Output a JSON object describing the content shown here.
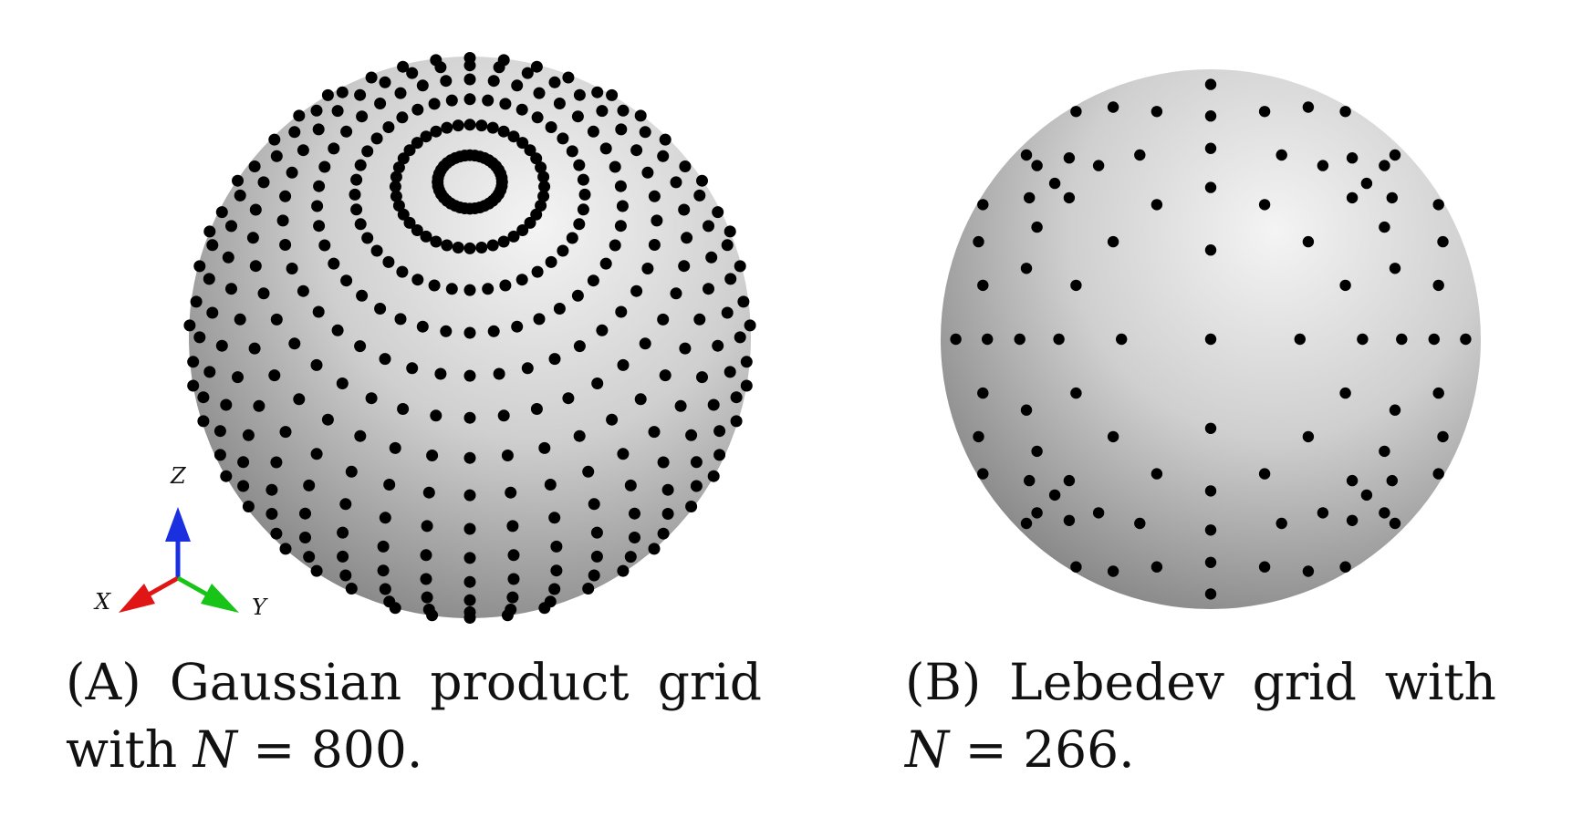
{
  "panels": [
    {
      "id": "a",
      "label": "(A)",
      "label_open": "(",
      "label_letter": "A",
      "label_close": ")",
      "caption_words": [
        "Gaussian",
        "product",
        "grid"
      ],
      "caption_line2_text": "with",
      "caption_symbol": "N",
      "caption_equals": "=",
      "caption_number": "800.",
      "grid_type": "gaussian-product",
      "n_points": 800
    },
    {
      "id": "b",
      "label": "(B)",
      "label_open": "(",
      "label_letter": "B",
      "label_close": ")",
      "caption_words": [
        "Lebedev",
        "grid",
        "with"
      ],
      "caption_line2_text": "",
      "caption_symbol": "N",
      "caption_equals": "=",
      "caption_number": "266.",
      "grid_type": "lebedev",
      "n_points": 266
    }
  ],
  "axes_triad": {
    "labels": [
      "Z",
      "X",
      "Y"
    ],
    "colors": {
      "Z": "#1a2fe0",
      "X": "#e01515",
      "Y": "#18c418"
    }
  },
  "colors": {
    "point": "#000000",
    "sphere_light": "#f4f4f4",
    "sphere_mid": "#c8c8c8",
    "sphere_dark": "#7a7a7a"
  }
}
